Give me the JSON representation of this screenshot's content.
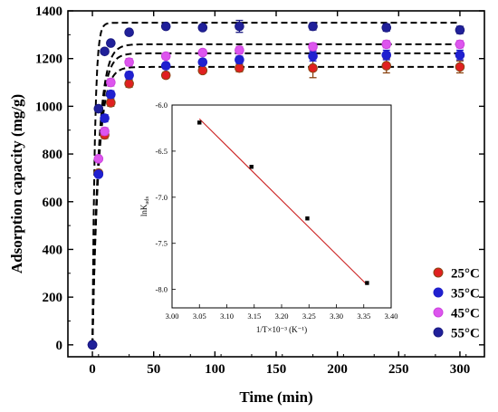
{
  "chart_data": [
    {
      "type": "scatter",
      "xlabel": "Time  (min)",
      "ylabel": "Adsorption capacity (mg/g)",
      "xlim": [
        -20,
        320
      ],
      "ylim": [
        -50,
        1400
      ],
      "xticks": [
        0,
        50,
        100,
        150,
        200,
        250,
        300
      ],
      "yticks": [
        0,
        200,
        400,
        600,
        800,
        1000,
        1200,
        1400
      ],
      "legend_position": "bottom-right",
      "series": [
        {
          "name": "25°C",
          "color": "#8b4513",
          "fill": "#e02020",
          "x": [
            0,
            5,
            10,
            15,
            30,
            60,
            90,
            120,
            180,
            240,
            300
          ],
          "y": [
            0,
            720,
            880,
            1015,
            1095,
            1130,
            1150,
            1160,
            1160,
            1170,
            1165
          ],
          "err": [
            0,
            10,
            15,
            15,
            15,
            12,
            10,
            15,
            40,
            30,
            25
          ],
          "fit_qe": 1165,
          "fit_k": 0.2
        },
        {
          "name": "35°C",
          "color": "#1e1ec8",
          "fill": "#2020d0",
          "x": [
            0,
            5,
            10,
            15,
            30,
            60,
            90,
            120,
            180,
            240,
            300
          ],
          "y": [
            0,
            715,
            950,
            1050,
            1130,
            1170,
            1185,
            1195,
            1210,
            1215,
            1215
          ],
          "err": [
            0,
            10,
            15,
            15,
            15,
            12,
            12,
            15,
            20,
            20,
            20
          ],
          "fit_qe": 1222,
          "fit_k": 0.2
        },
        {
          "name": "45°C",
          "color": "#cc44dd",
          "fill": "#dd55ee",
          "x": [
            5,
            10,
            15,
            30,
            60,
            90,
            120,
            180,
            240,
            300
          ],
          "y": [
            780,
            895,
            1100,
            1185,
            1210,
            1225,
            1235,
            1250,
            1260,
            1260
          ],
          "err": [
            10,
            15,
            15,
            15,
            12,
            12,
            15,
            15,
            15,
            15
          ],
          "fit_qe": 1260,
          "fit_k": 0.2
        },
        {
          "name": "55°C",
          "color": "#1a1a80",
          "fill": "#20209a",
          "x": [
            0,
            5,
            10,
            15,
            30,
            60,
            90,
            120,
            180,
            240,
            300
          ],
          "y": [
            0,
            990,
            1230,
            1265,
            1310,
            1335,
            1330,
            1335,
            1335,
            1330,
            1320
          ],
          "err": [
            0,
            10,
            10,
            10,
            10,
            10,
            10,
            25,
            15,
            15,
            15
          ],
          "fit_qe": 1350,
          "fit_k": 0.5
        }
      ]
    },
    {
      "type": "scatter",
      "xlabel": "1/T×10⁻³ (K⁻¹)",
      "ylabel_main": "lnK",
      "ylabel_sub": "ads",
      "xlim": [
        3.0,
        3.4
      ],
      "ylim": [
        -8.2,
        -6.0
      ],
      "xticks": [
        3.0,
        3.05,
        3.1,
        3.15,
        3.2,
        3.25,
        3.3,
        3.35,
        3.4
      ],
      "xtick_labels": [
        "3.00",
        "3.05",
        "3.10",
        "3.15",
        "3.20",
        "3.25",
        "3.30",
        "3.35",
        "3.40"
      ],
      "yticks": [
        -6.0,
        -6.5,
        -7.0,
        -7.5,
        -8.0
      ],
      "ytick_labels": [
        "-6.0",
        "-6.5",
        "-7.0",
        "-7.5",
        "-8.0"
      ],
      "points": {
        "x": [
          3.05,
          3.145,
          3.247,
          3.356
        ],
        "y": [
          -6.19,
          -6.67,
          -7.23,
          -7.93
        ]
      },
      "fit_line": {
        "x": [
          3.05,
          3.356
        ],
        "y": [
          -6.15,
          -7.95
        ],
        "color": "#cc2222"
      }
    }
  ]
}
